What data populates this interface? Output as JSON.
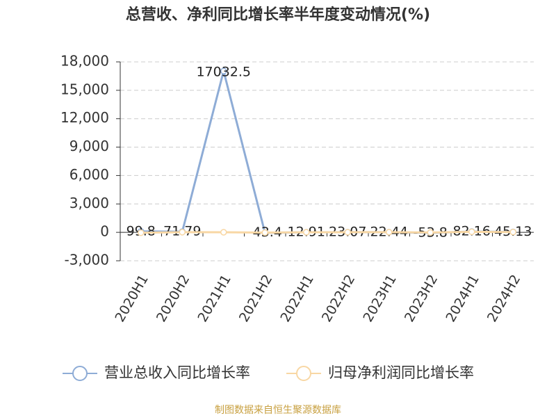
{
  "chart_data": {
    "type": "line",
    "title": "总营收、净利同比增长率半年度变动情况(%)",
    "categories": [
      "2020H1",
      "2020H2",
      "2021H1",
      "2021H2",
      "2022H1",
      "2022H2",
      "2023H1",
      "2023H2",
      "2024H1",
      "2024H2"
    ],
    "series": [
      {
        "name": "营业总收入同比增长率",
        "color": "#8eacd6",
        "values": [
          99.8,
          71.79,
          17032.5,
          -43.4,
          12.91,
          23.07,
          22.44,
          -53.8,
          82.16,
          45.13
        ]
      },
      {
        "name": "归母净利润同比增长率",
        "color": "#f8d7a4",
        "values": [
          -40,
          20,
          10,
          -30,
          10,
          15,
          20,
          -20,
          60,
          30
        ]
      }
    ],
    "ylim": [
      -3000,
      18000
    ],
    "yticks": [
      {
        "value": -3000,
        "label": "-3,000"
      },
      0,
      {
        "value": 3000,
        "label": "3,000"
      },
      {
        "value": 6000,
        "label": "6,000"
      },
      {
        "value": 9000,
        "label": "9,000"
      },
      {
        "value": 12000,
        "label": "12,000"
      },
      {
        "value": 15000,
        "label": "15,000"
      },
      {
        "value": 18000,
        "label": "18,000"
      }
    ],
    "grid": true,
    "source": "制图数据来自恒生聚源数据库"
  }
}
